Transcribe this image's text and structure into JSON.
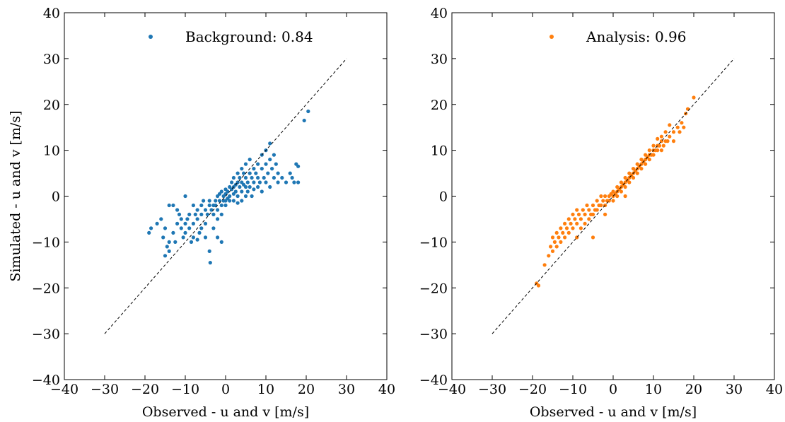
{
  "chart_data": [
    {
      "type": "scatter",
      "xlabel": "Observed - u and v [m/s]",
      "ylabel": "Simulated - u and v [m/s]",
      "xlim": [
        -40,
        40
      ],
      "ylim": [
        -40,
        40
      ],
      "xticks": [
        "−40",
        "−30",
        "−20",
        "−10",
        "0",
        "10",
        "20",
        "30",
        "40"
      ],
      "yticks": [
        "−40",
        "−30",
        "−20",
        "−10",
        "0",
        "10",
        "20",
        "30",
        "40"
      ],
      "grid": false,
      "legend_position": "top-center",
      "reference_line": {
        "style": "dashed",
        "color": "#000000",
        "from": [
          -30,
          -30
        ],
        "to": [
          30,
          30
        ]
      },
      "series": [
        {
          "name": "Background: 0.84",
          "color": "#1f77b4",
          "points": [
            [
              -19,
              -8
            ],
            [
              -18.5,
              -7
            ],
            [
              -17,
              -6
            ],
            [
              -16,
              -5
            ],
            [
              -15,
              -7
            ],
            [
              -15.5,
              -9
            ],
            [
              -14,
              -10
            ],
            [
              -14.5,
              -11
            ],
            [
              -15,
              -13
            ],
            [
              -14,
              -12
            ],
            [
              -13,
              -8
            ],
            [
              -12.5,
              -10
            ],
            [
              -12,
              -6
            ],
            [
              -12,
              -3
            ],
            [
              -11.5,
              -4
            ],
            [
              -11,
              -5
            ],
            [
              -11,
              -7
            ],
            [
              -10.5,
              -9
            ],
            [
              -10,
              -8
            ],
            [
              -10,
              -6
            ],
            [
              -9.5,
              -5
            ],
            [
              -9,
              -4
            ],
            [
              -9,
              -7
            ],
            [
              -8.5,
              -10
            ],
            [
              -8,
              -9
            ],
            [
              -8,
              -6
            ],
            [
              -8,
              -2
            ],
            [
              -7.5,
              -4
            ],
            [
              -7,
              -5
            ],
            [
              -7,
              -3
            ],
            [
              -6.5,
              -8
            ],
            [
              -6,
              -7
            ],
            [
              -6,
              -4
            ],
            [
              -6,
              -2
            ],
            [
              -5.5,
              -1
            ],
            [
              -5,
              -3
            ],
            [
              -5,
              -6
            ],
            [
              -5,
              -9
            ],
            [
              -4.5,
              -4
            ],
            [
              -4,
              -2
            ],
            [
              -4,
              -1
            ],
            [
              -4,
              -12
            ],
            [
              -3.8,
              -14.5
            ],
            [
              -3.5,
              -3
            ],
            [
              -3,
              -2
            ],
            [
              -3,
              -4
            ],
            [
              -3,
              -7
            ],
            [
              -2.5,
              -1
            ],
            [
              -2.5,
              -2
            ],
            [
              -2,
              0
            ],
            [
              -2,
              -3
            ],
            [
              -2,
              -5
            ],
            [
              -1.5,
              -1
            ],
            [
              -1.5,
              0.5
            ],
            [
              -1,
              -2
            ],
            [
              -1,
              1
            ],
            [
              -1,
              -4
            ],
            [
              -0.5,
              -1
            ],
            [
              -0.5,
              0
            ],
            [
              0,
              0.5
            ],
            [
              0,
              -1
            ],
            [
              0,
              1.5
            ],
            [
              0,
              -2
            ],
            [
              0.5,
              1
            ],
            [
              0.5,
              -0.5
            ],
            [
              1,
              2
            ],
            [
              1,
              0
            ],
            [
              1,
              -1
            ],
            [
              1.5,
              1.5
            ],
            [
              1.5,
              3
            ],
            [
              2,
              0.5
            ],
            [
              2,
              2
            ],
            [
              2,
              -1
            ],
            [
              2,
              4
            ],
            [
              2.5,
              1
            ],
            [
              2.5,
              2.5
            ],
            [
              3,
              0
            ],
            [
              3,
              3
            ],
            [
              3,
              5
            ],
            [
              3,
              -1.5
            ],
            [
              3.5,
              2
            ],
            [
              3.5,
              4
            ],
            [
              4,
              1
            ],
            [
              4,
              3
            ],
            [
              4,
              6
            ],
            [
              4,
              -1
            ],
            [
              4.5,
              2.5
            ],
            [
              4.5,
              5
            ],
            [
              5,
              0
            ],
            [
              5,
              2
            ],
            [
              5,
              4
            ],
            [
              5,
              7
            ],
            [
              5.5,
              3
            ],
            [
              5.5,
              1
            ],
            [
              6,
              5
            ],
            [
              6,
              2
            ],
            [
              6,
              8
            ],
            [
              6.5,
              4
            ],
            [
              6.5,
              0
            ],
            [
              7,
              3
            ],
            [
              7,
              6
            ],
            [
              7,
              1.5
            ],
            [
              7.5,
              5
            ],
            [
              8,
              2
            ],
            [
              8,
              7
            ],
            [
              8,
              4
            ],
            [
              8.5,
              3
            ],
            [
              9,
              6
            ],
            [
              9,
              9
            ],
            [
              9,
              1
            ],
            [
              9.5,
              4
            ],
            [
              10,
              7
            ],
            [
              10,
              3
            ],
            [
              10,
              10
            ],
            [
              10.5,
              5
            ],
            [
              11,
              8
            ],
            [
              11,
              2
            ],
            [
              11,
              11.5
            ],
            [
              11.5,
              6
            ],
            [
              12,
              4
            ],
            [
              12,
              9
            ],
            [
              12.5,
              7
            ],
            [
              13,
              5
            ],
            [
              13,
              3
            ],
            [
              14,
              4
            ],
            [
              15,
              3
            ],
            [
              16,
              5
            ],
            [
              16.5,
              4
            ],
            [
              17,
              3
            ],
            [
              17.5,
              7
            ],
            [
              18,
              6.5
            ],
            [
              18,
              3
            ],
            [
              19.5,
              16.5
            ],
            [
              20.5,
              18.5
            ],
            [
              -13,
              -2
            ],
            [
              -14,
              -2
            ],
            [
              -10,
              0
            ],
            [
              -7,
              -9.5
            ],
            [
              -2,
              -9
            ],
            [
              -1,
              -10
            ]
          ]
        },
        {
          "name": "Analysis: 0.96",
          "color": "#ff7f0e",
          "points": [
            [
              -19,
              -19
            ],
            [
              -18.5,
              -19.5
            ],
            [
              -17,
              -15
            ],
            [
              -16,
              -13
            ],
            [
              -15.5,
              -11
            ],
            [
              -15,
              -9
            ],
            [
              -15,
              -12
            ],
            [
              -14.5,
              -10
            ],
            [
              -14,
              -8
            ],
            [
              -14,
              -11
            ],
            [
              -13.5,
              -9
            ],
            [
              -13,
              -7
            ],
            [
              -13,
              -10
            ],
            [
              -12.5,
              -8
            ],
            [
              -12,
              -6
            ],
            [
              -12,
              -9
            ],
            [
              -11.5,
              -7
            ],
            [
              -11,
              -5
            ],
            [
              -11,
              -8
            ],
            [
              -10.5,
              -6
            ],
            [
              -10,
              -4
            ],
            [
              -10,
              -7
            ],
            [
              -9.5,
              -5
            ],
            [
              -9,
              -3
            ],
            [
              -9,
              -6
            ],
            [
              -8.5,
              -4
            ],
            [
              -8,
              -5
            ],
            [
              -8,
              -7
            ],
            [
              -7.5,
              -3
            ],
            [
              -7,
              -4
            ],
            [
              -7,
              -6
            ],
            [
              -6.5,
              -2
            ],
            [
              -6,
              -3
            ],
            [
              -6,
              -5
            ],
            [
              -5.5,
              -4
            ],
            [
              -5,
              -2
            ],
            [
              -5,
              -4
            ],
            [
              -4.5,
              -3
            ],
            [
              -4,
              -1
            ],
            [
              -4,
              -3
            ],
            [
              -3.5,
              -2
            ],
            [
              -3,
              0
            ],
            [
              -3,
              -2
            ],
            [
              -2.5,
              -1
            ],
            [
              -2,
              0
            ],
            [
              -2,
              -2
            ],
            [
              -1.5,
              -1
            ],
            [
              -1,
              0
            ],
            [
              -1,
              -1
            ],
            [
              -0.5,
              0.5
            ],
            [
              0,
              0
            ],
            [
              0,
              1
            ],
            [
              0,
              -1
            ],
            [
              0.5,
              0.5
            ],
            [
              1,
              1
            ],
            [
              1,
              2
            ],
            [
              1,
              0
            ],
            [
              1.5,
              1.5
            ],
            [
              2,
              2
            ],
            [
              2,
              3
            ],
            [
              2,
              1
            ],
            [
              2.5,
              2.5
            ],
            [
              3,
              3
            ],
            [
              3,
              4
            ],
            [
              3,
              2
            ],
            [
              3.5,
              3.5
            ],
            [
              4,
              4
            ],
            [
              4,
              5
            ],
            [
              4,
              3
            ],
            [
              4.5,
              4.5
            ],
            [
              5,
              5
            ],
            [
              5,
              6
            ],
            [
              5,
              4
            ],
            [
              5.5,
              5.5
            ],
            [
              6,
              6
            ],
            [
              6,
              7
            ],
            [
              6,
              5
            ],
            [
              6.5,
              6.5
            ],
            [
              7,
              7
            ],
            [
              7,
              8
            ],
            [
              7,
              6
            ],
            [
              7.5,
              7.5
            ],
            [
              8,
              8
            ],
            [
              8,
              9
            ],
            [
              8,
              7
            ],
            [
              8.5,
              8.5
            ],
            [
              9,
              9
            ],
            [
              9,
              10
            ],
            [
              9,
              8
            ],
            [
              9.5,
              9
            ],
            [
              10,
              10
            ],
            [
              10,
              11
            ],
            [
              10,
              9
            ],
            [
              10.5,
              10
            ],
            [
              11,
              11
            ],
            [
              11,
              12.5
            ],
            [
              11,
              10
            ],
            [
              11.5,
              11
            ],
            [
              12,
              12
            ],
            [
              12,
              13
            ],
            [
              12,
              10
            ],
            [
              12.5,
              11
            ],
            [
              13,
              12
            ],
            [
              13,
              14
            ],
            [
              13.5,
              12
            ],
            [
              14,
              13
            ],
            [
              14,
              15.5
            ],
            [
              15,
              14
            ],
            [
              15,
              12
            ],
            [
              16,
              15
            ],
            [
              16.5,
              14
            ],
            [
              17,
              16
            ],
            [
              17.5,
              15
            ],
            [
              18,
              18
            ],
            [
              18.5,
              19
            ],
            [
              20,
              21.5
            ],
            [
              -9,
              -9
            ],
            [
              -5,
              -9
            ],
            [
              -2,
              -4
            ],
            [
              3,
              0
            ]
          ]
        }
      ]
    }
  ]
}
